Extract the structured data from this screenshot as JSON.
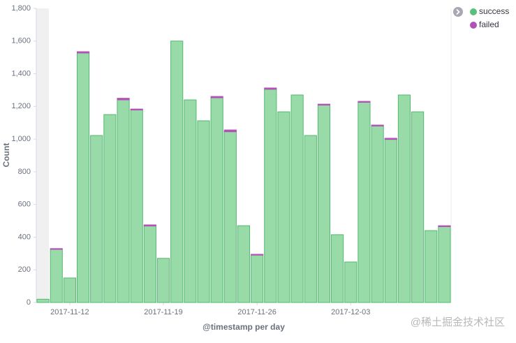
{
  "chart_data": {
    "type": "bar",
    "stacked": true,
    "x_label": "@timestamp per day",
    "y_label": "Count",
    "watermark": "@稀土掘金技术社区",
    "categories": [
      null,
      null,
      "2017-11-12",
      null,
      null,
      null,
      null,
      null,
      null,
      "2017-11-19",
      null,
      null,
      null,
      null,
      null,
      null,
      "2017-11-26",
      null,
      null,
      null,
      null,
      null,
      null,
      "2017-12-03",
      null,
      null,
      null,
      null,
      null,
      null,
      null
    ],
    "series": [
      {
        "name": "success",
        "color": "#54b870",
        "fill": "#98dba9",
        "values": [
          20,
          325,
          150,
          1527,
          1022,
          1150,
          1240,
          1178,
          468,
          270,
          1600,
          1240,
          1112,
          1253,
          1045,
          470,
          290,
          1305,
          1167,
          1270,
          1022,
          1208,
          415,
          248,
          1225,
          1080,
          998,
          1270,
          1167,
          440,
          464
        ]
      },
      {
        "name": "failed",
        "color": "#b451b8",
        "fill": "#b451b8",
        "values": [
          0,
          5,
          0,
          8,
          0,
          0,
          10,
          6,
          7,
          0,
          0,
          0,
          0,
          8,
          11,
          0,
          5,
          8,
          0,
          0,
          0,
          6,
          0,
          0,
          6,
          6,
          7,
          0,
          0,
          0,
          6
        ]
      }
    ],
    "ylim": [
      0,
      1800
    ],
    "yticks": [
      0,
      200,
      400,
      600,
      800,
      {
        "value": 1000,
        "label": "1,000"
      },
      {
        "value": 1200,
        "label": "1,200"
      },
      {
        "value": 1400,
        "label": "1,400"
      },
      {
        "value": 1600,
        "label": "1,600"
      },
      {
        "value": 1800,
        "label": "1,800"
      }
    ],
    "legend": "top-right"
  }
}
